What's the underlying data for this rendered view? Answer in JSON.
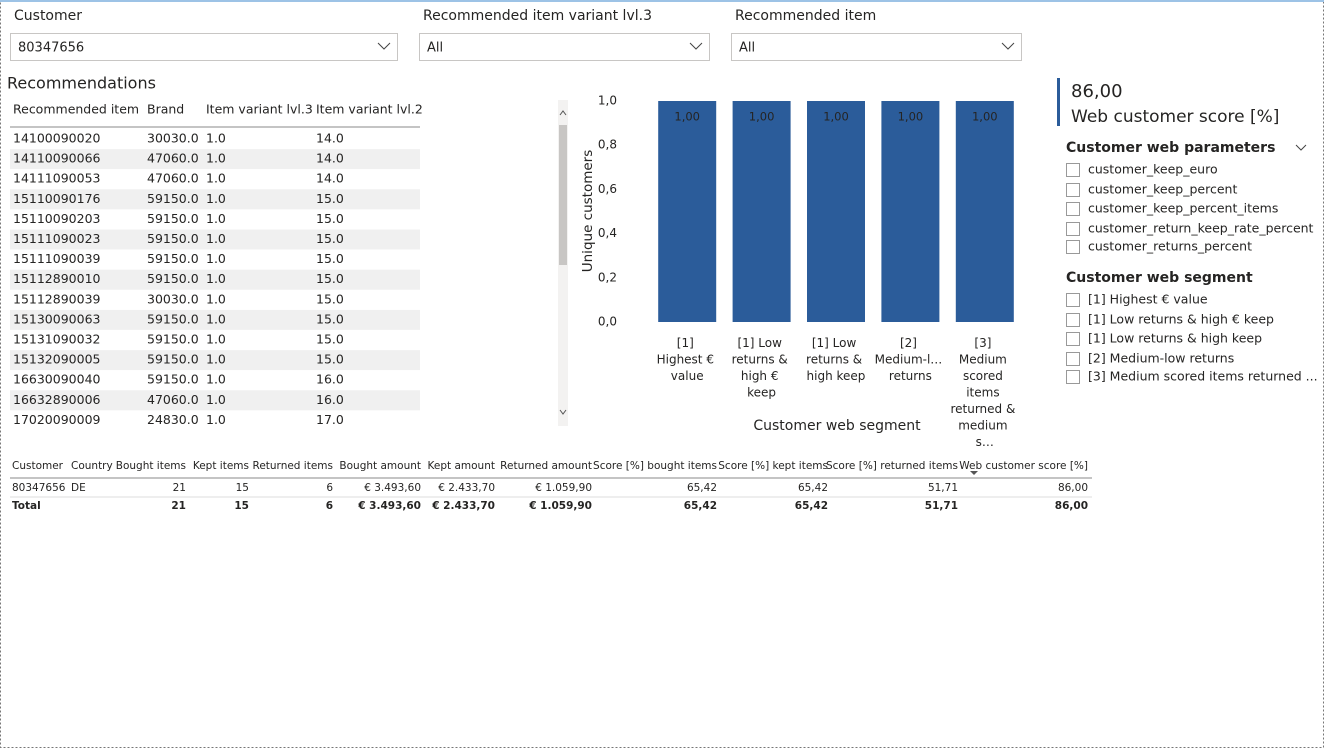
{
  "filters": [
    {
      "label": "Customer",
      "value": "80347656"
    },
    {
      "label": "Recommended item variant lvl.3",
      "value": "All"
    },
    {
      "label": "Recommended item",
      "value": "All"
    }
  ],
  "recommendations": {
    "title": "Recommendations",
    "columns": [
      "Recommended item",
      "Brand",
      "Item variant lvl.3",
      "Item variant lvl.2"
    ],
    "rows": [
      [
        "14100090020",
        "30030.0",
        "1.0",
        "14.0"
      ],
      [
        "14110090066",
        "47060.0",
        "1.0",
        "14.0"
      ],
      [
        "14111090053",
        "47060.0",
        "1.0",
        "14.0"
      ],
      [
        "15110090176",
        "59150.0",
        "1.0",
        "15.0"
      ],
      [
        "15110090203",
        "59150.0",
        "1.0",
        "15.0"
      ],
      [
        "15111090023",
        "59150.0",
        "1.0",
        "15.0"
      ],
      [
        "15111090039",
        "59150.0",
        "1.0",
        "15.0"
      ],
      [
        "15112890010",
        "59150.0",
        "1.0",
        "15.0"
      ],
      [
        "15112890039",
        "30030.0",
        "1.0",
        "15.0"
      ],
      [
        "15130090063",
        "59150.0",
        "1.0",
        "15.0"
      ],
      [
        "15131090032",
        "59150.0",
        "1.0",
        "15.0"
      ],
      [
        "15132090005",
        "59150.0",
        "1.0",
        "15.0"
      ],
      [
        "16630090040",
        "59150.0",
        "1.0",
        "16.0"
      ],
      [
        "16632890006",
        "47060.0",
        "1.0",
        "16.0"
      ],
      [
        "17020090009",
        "24830.0",
        "1.0",
        "17.0"
      ]
    ]
  },
  "chart_data": {
    "type": "bar",
    "categories": [
      "[1] Highest € value",
      "[1] Low returns & high € keep",
      "[1] Low returns & high keep",
      "[2] Medium-l… returns",
      "[3] Medium scored items returned & medium s…"
    ],
    "values": [
      1,
      1,
      1,
      1,
      1
    ],
    "value_labels": [
      "1,00",
      "1,00",
      "1,00",
      "1,00",
      "1,00"
    ],
    "color": "#2b5c9a",
    "ylim": [
      0,
      1
    ],
    "yticks": [
      {
        "value": 0,
        "label": "0,0"
      },
      {
        "value": 0.2,
        "label": "0,2"
      },
      {
        "value": 0.4,
        "label": "0,4"
      },
      {
        "value": 0.6,
        "label": "0,6"
      },
      {
        "value": 0.8,
        "label": "0,8"
      },
      {
        "value": 1,
        "label": "1,0"
      }
    ],
    "x_label": "Customer web segment",
    "y_label": "Unique customers"
  },
  "card": {
    "value": "86,00",
    "label": "Web customer score [%]"
  },
  "slicers": [
    {
      "title": "Customer web parameters",
      "items": [
        "customer_keep_euro",
        "customer_keep_percent",
        "customer_keep_percent_items",
        "customer_return_keep_rate_percent",
        "customer_returns_percent"
      ]
    },
    {
      "title": "Customer web segment",
      "items": [
        "[1] Highest € value",
        "[1] Low returns & high € keep",
        "[1] Low returns & high keep",
        "[2] Medium-low returns",
        "[3] Medium scored items returned ..."
      ]
    }
  ],
  "summary_table": {
    "columns": [
      "Customer",
      "Country",
      "Bought items",
      "Kept items",
      "Returned items",
      "Bought amount",
      "Kept amount",
      "Returned amount",
      "Score [%] bought items",
      "Score [%] kept items",
      "Score [%] returned items",
      "Web customer score [%]"
    ],
    "rows": [
      [
        "80347656",
        "DE",
        "21",
        "15",
        "6",
        "€ 3.493,60",
        "€ 2.433,70",
        "€ 1.059,90",
        "65,42",
        "65,42",
        "51,71",
        "86,00"
      ]
    ],
    "total": {
      "label": "Total",
      "cells": [
        "21",
        "15",
        "6",
        "€ 3.493,60",
        "€ 2.433,70",
        "€ 1.059,90",
        "65,42",
        "65,42",
        "51,71",
        "86,00"
      ]
    }
  }
}
